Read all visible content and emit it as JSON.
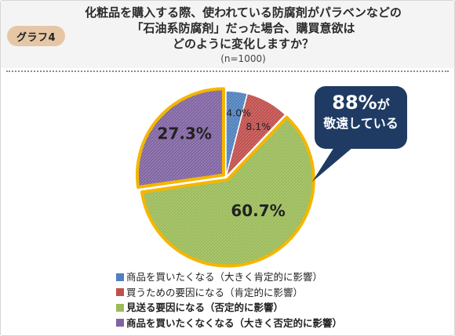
{
  "badge": "グラフ4",
  "question_lines": [
    "化粧品を購入する際、使われている防腐剤がパラベンなどの",
    "「石油系防腐剤」だった場合、購買意欲は",
    "どのように変化しますか？"
  ],
  "sample_size": "(n=1000)",
  "callout": {
    "number": "88%",
    "suffix": "が",
    "line2": "敬遠している"
  },
  "colors": {
    "blue": "#4f81bd",
    "red": "#c0504d",
    "green": "#9bbb59",
    "purple": "#8064a2",
    "highlight_border": "#f4b600",
    "callout_bg": "#1f3b63"
  },
  "chart_data": {
    "type": "pie",
    "start": "top, clockwise",
    "slices": [
      {
        "label": "商品を買いたくなる（大きく肯定的に影響）",
        "value": 4.0,
        "value_label": "4.0%",
        "color": "#4f81bd",
        "highlighted": false
      },
      {
        "label": "買うための要因になる（肯定的に影響）",
        "value": 8.1,
        "value_label": "8.1%",
        "color": "#c0504d",
        "highlighted": false
      },
      {
        "label": "見送る要因になる（否定的に影響）",
        "value": 60.7,
        "value_label": "60.7%",
        "color": "#9bbb59",
        "highlighted": true
      },
      {
        "label": "商品を買いたくなくなる（大きく否定的に影響）",
        "value": 27.3,
        "value_label": "27.3%",
        "color": "#8064a2",
        "highlighted": true
      }
    ]
  }
}
